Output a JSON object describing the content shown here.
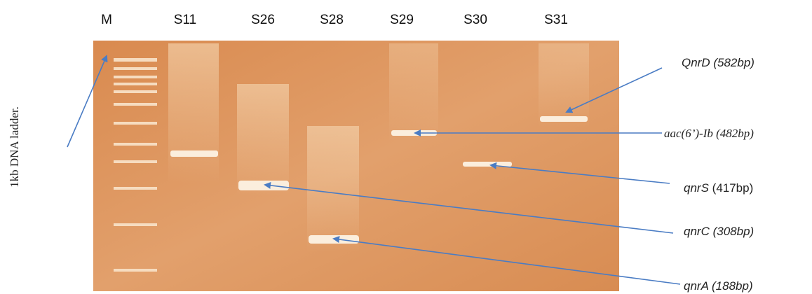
{
  "lanes": [
    "M",
    "S11",
    "S26",
    "S28",
    "S29",
    "S30",
    "S31"
  ],
  "ladder_label": "1kb DNA ladder.",
  "annotations": [
    {
      "gene": "QnrD",
      "size": "(582bp)"
    },
    {
      "gene": "aac(6’)-Ib",
      "size": "(482bp)"
    },
    {
      "gene": "qnrS",
      "size": "(417bp)"
    },
    {
      "gene": "qnrC",
      "size": "(308bp)"
    },
    {
      "gene": "qnrA",
      "size": "(188bp)"
    }
  ]
}
